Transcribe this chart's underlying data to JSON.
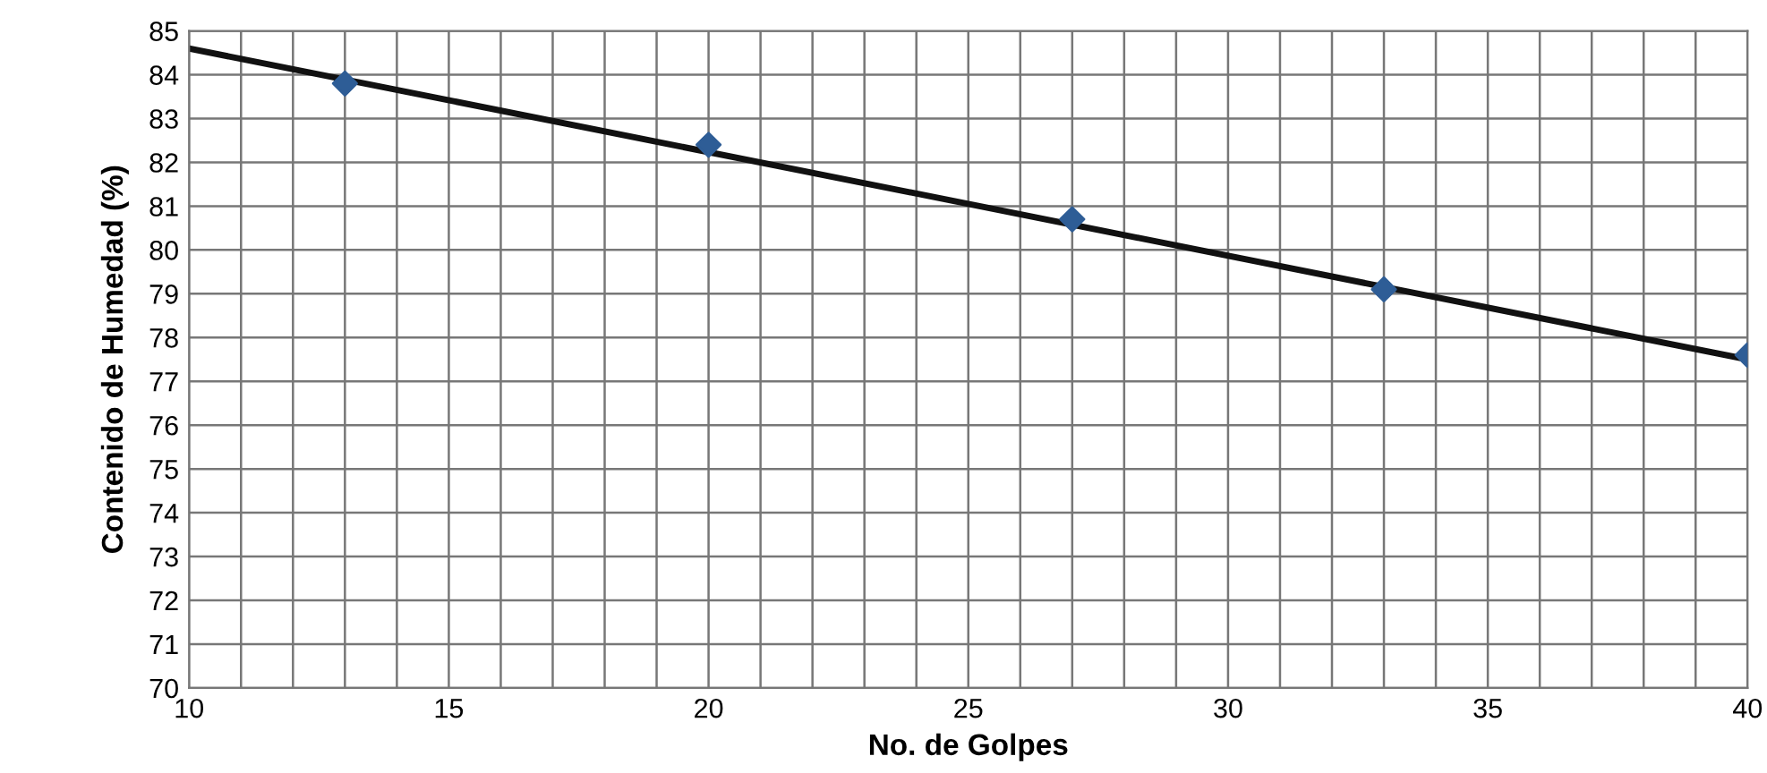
{
  "chart_data": {
    "type": "scatter",
    "xlabel": "No. de Golpes",
    "ylabel": "Contenido de Humedad (%)",
    "x": [
      13,
      20,
      27,
      33,
      40
    ],
    "series": [
      {
        "color": "#2e5d96",
        "marker": "diamond",
        "values": [
          83.8,
          82.4,
          80.7,
          79.1,
          77.6
        ]
      },
      {
        "type": "line",
        "color": "#111111",
        "marker": "none",
        "line_style": "solid",
        "x": [
          10,
          40
        ],
        "values": [
          84.6,
          77.5
        ]
      }
    ],
    "xlim": [
      10,
      40
    ],
    "ylim": [
      70,
      85
    ],
    "xticks": [
      10,
      {
        "value": 11,
        "label": null
      },
      {
        "value": 12,
        "label": null
      },
      {
        "value": 13,
        "label": null
      },
      {
        "value": 14,
        "label": null
      },
      15,
      {
        "value": 16,
        "label": null
      },
      {
        "value": 17,
        "label": null
      },
      {
        "value": 18,
        "label": null
      },
      {
        "value": 19,
        "label": null
      },
      20,
      {
        "value": 21,
        "label": null
      },
      {
        "value": 22,
        "label": null
      },
      {
        "value": 23,
        "label": null
      },
      {
        "value": 24,
        "label": null
      },
      25,
      {
        "value": 26,
        "label": null
      },
      {
        "value": 27,
        "label": null
      },
      {
        "value": 28,
        "label": null
      },
      {
        "value": 29,
        "label": null
      },
      30,
      {
        "value": 31,
        "label": null
      },
      {
        "value": 32,
        "label": null
      },
      {
        "value": 33,
        "label": null
      },
      {
        "value": 34,
        "label": null
      },
      35,
      {
        "value": 36,
        "label": null
      },
      {
        "value": 37,
        "label": null
      },
      {
        "value": 38,
        "label": null
      },
      {
        "value": 39,
        "label": null
      },
      40
    ],
    "yticks": [
      70,
      71,
      72,
      73,
      74,
      75,
      76,
      77,
      78,
      79,
      80,
      81,
      82,
      83,
      84,
      85
    ],
    "grid": true,
    "legend": false
  }
}
